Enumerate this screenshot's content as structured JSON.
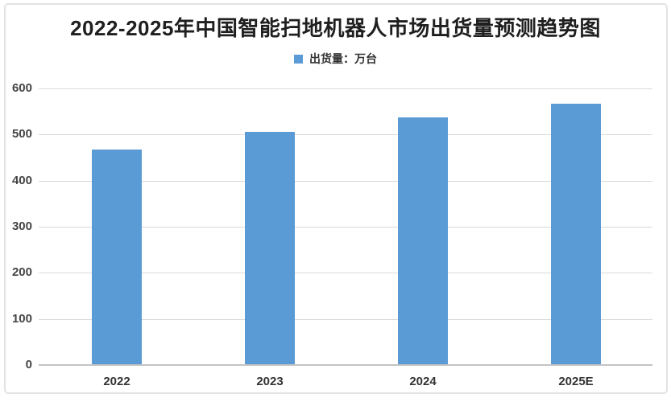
{
  "title": "2022-2025年中国智能扫地机器人市场出货量预测趋势图",
  "legend": {
    "label": "出货量：万台",
    "swatch_icon": "legend-square-icon"
  },
  "chart_data": {
    "type": "bar",
    "title": "2022-2025年中国智能扫地机器人市场出货量预测趋势图",
    "categories": [
      "2022",
      "2023",
      "2024",
      "2025E"
    ],
    "series": [
      {
        "name": "出货量：万台",
        "values": [
          468,
          505,
          538,
          566
        ]
      }
    ],
    "xlabel": "",
    "ylabel": "",
    "ylim": [
      0,
      600
    ],
    "yticks": [
      0,
      100,
      200,
      300,
      400,
      500,
      600
    ],
    "grid": true,
    "legend_position": "top-center",
    "bar_color": "#5b9bd5",
    "gridline_color": "#d9d9d9",
    "text_color": "#333333"
  }
}
